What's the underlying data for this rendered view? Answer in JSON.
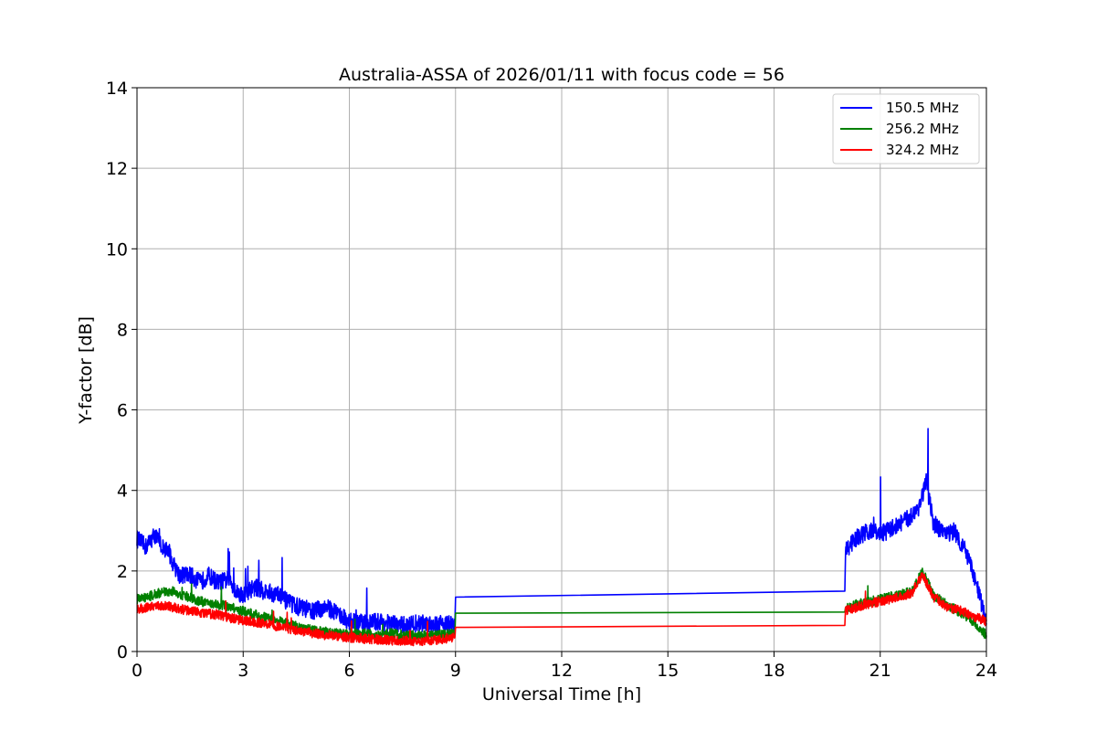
{
  "chart_data": {
    "type": "line",
    "title": "Australia-ASSA of 2026/01/11 with focus code = 56",
    "xlabel": "Universal Time [h]",
    "ylabel": "Y-factor [dB]",
    "xlim": [
      0,
      24
    ],
    "ylim": [
      0,
      14
    ],
    "xticks": [
      0,
      3,
      6,
      9,
      12,
      15,
      18,
      21,
      24
    ],
    "yticks": [
      0,
      2,
      4,
      6,
      8,
      10,
      12,
      14
    ],
    "xtick_labels": [
      "0",
      "3",
      "6",
      "9",
      "12",
      "15",
      "18",
      "21",
      "24"
    ],
    "ytick_labels": [
      "0",
      "2",
      "4",
      "6",
      "8",
      "10",
      "12",
      "14"
    ],
    "grid": true,
    "legend_position": "top-right",
    "series": [
      {
        "name": "150.5 MHz",
        "color": "#0000ff",
        "points": [
          [
            0,
            2.8
          ],
          [
            0.25,
            2.6
          ],
          [
            0.5,
            2.9
          ],
          [
            0.7,
            2.6
          ],
          [
            0.9,
            2.5
          ],
          [
            1.0,
            2.2
          ],
          [
            1.2,
            1.9
          ],
          [
            1.5,
            1.9
          ],
          [
            1.8,
            1.7
          ],
          [
            2.0,
            1.9
          ],
          [
            2.3,
            1.7
          ],
          [
            2.6,
            1.8
          ],
          [
            2.8,
            1.5
          ],
          [
            3.0,
            1.4
          ],
          [
            3.3,
            1.6
          ],
          [
            3.6,
            1.5
          ],
          [
            4.0,
            1.4
          ],
          [
            4.3,
            1.2
          ],
          [
            4.6,
            1.1
          ],
          [
            5.0,
            1.0
          ],
          [
            5.3,
            1.1
          ],
          [
            5.6,
            1.0
          ],
          [
            5.9,
            0.8
          ],
          [
            6.2,
            0.7
          ],
          [
            6.5,
            0.7
          ],
          [
            6.8,
            0.75
          ],
          [
            7.1,
            0.7
          ],
          [
            7.5,
            0.65
          ],
          [
            7.9,
            0.7
          ],
          [
            8.3,
            0.7
          ],
          [
            8.7,
            0.7
          ],
          [
            8.98,
            0.65
          ],
          [
            9.0,
            1.35
          ],
          [
            20.0,
            1.5
          ],
          [
            20.02,
            2.5
          ],
          [
            20.3,
            2.8
          ],
          [
            20.7,
            3.0
          ],
          [
            21.0,
            2.9
          ],
          [
            21.4,
            3.1
          ],
          [
            21.8,
            3.3
          ],
          [
            22.1,
            3.6
          ],
          [
            22.3,
            4.2
          ],
          [
            22.5,
            3.2
          ],
          [
            22.8,
            2.9
          ],
          [
            23.1,
            3.0
          ],
          [
            23.4,
            2.5
          ],
          [
            23.6,
            2.0
          ],
          [
            23.8,
            1.4
          ],
          [
            24.0,
            0.7
          ]
        ]
      },
      {
        "name": "256.2 MHz",
        "color": "#008000",
        "points": [
          [
            0,
            1.3
          ],
          [
            0.3,
            1.35
          ],
          [
            0.6,
            1.45
          ],
          [
            1.0,
            1.5
          ],
          [
            1.3,
            1.4
          ],
          [
            1.6,
            1.3
          ],
          [
            2.0,
            1.2
          ],
          [
            2.4,
            1.15
          ],
          [
            2.8,
            1.05
          ],
          [
            3.2,
            0.95
          ],
          [
            3.6,
            0.85
          ],
          [
            4.0,
            0.75
          ],
          [
            4.4,
            0.65
          ],
          [
            4.8,
            0.55
          ],
          [
            5.2,
            0.5
          ],
          [
            5.6,
            0.45
          ],
          [
            6.0,
            0.45
          ],
          [
            6.4,
            0.45
          ],
          [
            6.8,
            0.4
          ],
          [
            7.2,
            0.45
          ],
          [
            7.6,
            0.4
          ],
          [
            8.0,
            0.4
          ],
          [
            8.4,
            0.4
          ],
          [
            8.98,
            0.45
          ],
          [
            9.0,
            0.95
          ],
          [
            20.0,
            0.98
          ],
          [
            20.02,
            1.1
          ],
          [
            20.5,
            1.2
          ],
          [
            21.0,
            1.3
          ],
          [
            21.5,
            1.4
          ],
          [
            21.9,
            1.5
          ],
          [
            22.2,
            2.0
          ],
          [
            22.5,
            1.4
          ],
          [
            22.9,
            1.15
          ],
          [
            23.3,
            0.95
          ],
          [
            23.7,
            0.7
          ],
          [
            24.0,
            0.4
          ]
        ]
      },
      {
        "name": "324.2 MHz",
        "color": "#ff0000",
        "points": [
          [
            0,
            1.05
          ],
          [
            0.4,
            1.1
          ],
          [
            0.8,
            1.15
          ],
          [
            1.2,
            1.05
          ],
          [
            1.6,
            1.0
          ],
          [
            2.0,
            0.95
          ],
          [
            2.4,
            0.9
          ],
          [
            2.8,
            0.8
          ],
          [
            3.2,
            0.75
          ],
          [
            3.6,
            0.7
          ],
          [
            4.0,
            0.62
          ],
          [
            4.4,
            0.55
          ],
          [
            4.8,
            0.48
          ],
          [
            5.2,
            0.42
          ],
          [
            5.6,
            0.38
          ],
          [
            6.0,
            0.35
          ],
          [
            6.4,
            0.32
          ],
          [
            6.8,
            0.3
          ],
          [
            7.2,
            0.28
          ],
          [
            7.6,
            0.27
          ],
          [
            8.0,
            0.26
          ],
          [
            8.4,
            0.28
          ],
          [
            8.98,
            0.35
          ],
          [
            9.0,
            0.6
          ],
          [
            20.0,
            0.65
          ],
          [
            20.02,
            1.0
          ],
          [
            20.5,
            1.15
          ],
          [
            21.0,
            1.25
          ],
          [
            21.5,
            1.35
          ],
          [
            21.9,
            1.45
          ],
          [
            22.2,
            1.9
          ],
          [
            22.5,
            1.35
          ],
          [
            22.9,
            1.1
          ],
          [
            23.3,
            1.0
          ],
          [
            23.7,
            0.85
          ],
          [
            24.0,
            0.75
          ]
        ]
      }
    ]
  }
}
